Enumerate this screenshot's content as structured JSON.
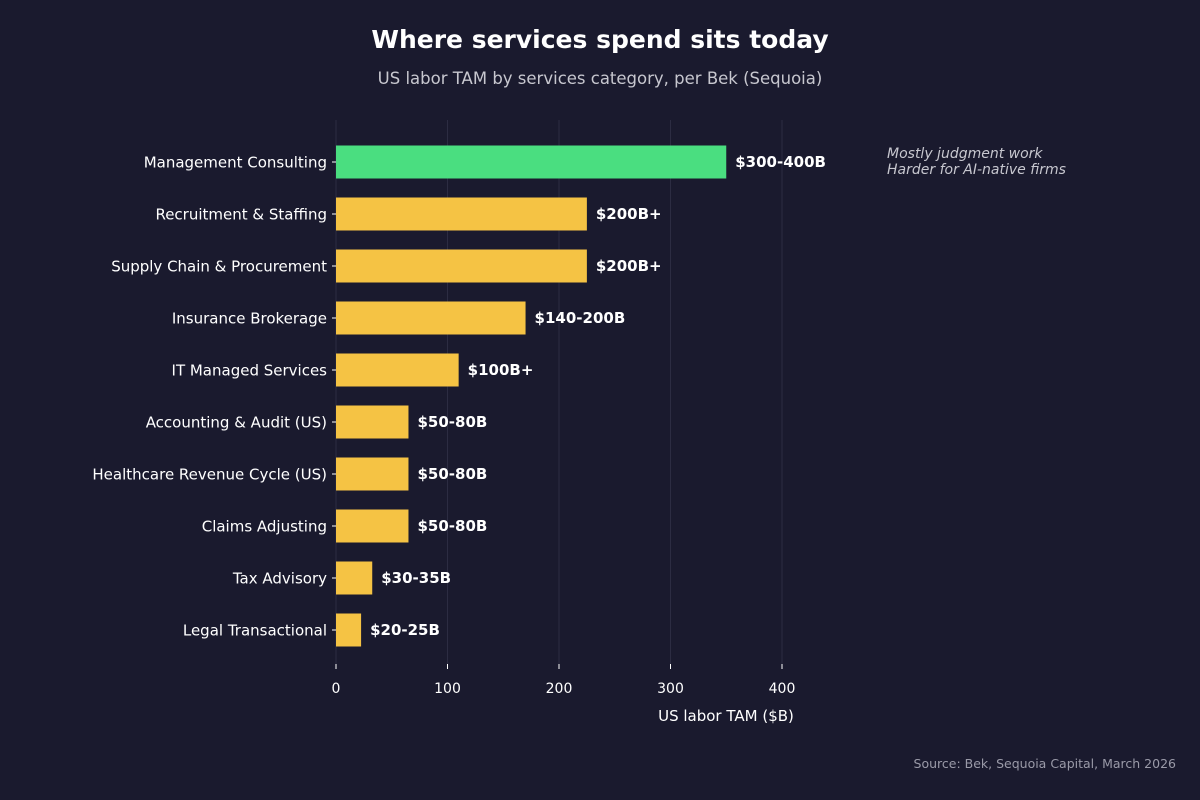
{
  "chart_data": {
    "type": "bar",
    "orientation": "horizontal",
    "title": "Where services spend sits today",
    "subtitle": "US labor TAM by services category, per Bek (Sequoia)",
    "xlabel": "US labor TAM ($B)",
    "ylabel": "",
    "xlim": [
      0,
      440
    ],
    "xticks": [
      0,
      100,
      200,
      300,
      400
    ],
    "grid": "vertical",
    "categories": [
      "Management Consulting",
      "Recruitment & Staffing",
      "Supply Chain & Procurement",
      "Insurance Brokerage",
      "IT Managed Services",
      "Accounting & Audit (US)",
      "Healthcare Revenue Cycle (US)",
      "Claims Adjusting",
      "Tax Advisory",
      "Legal Transactional"
    ],
    "values": [
      350,
      225,
      225,
      170,
      110,
      65,
      65,
      65,
      32.5,
      22.5
    ],
    "value_labels": [
      "$300-400B",
      "$200B+",
      "$200B+",
      "$140-200B",
      "$100B+",
      "$50-80B",
      "$50-80B",
      "$50-80B",
      "$30-35B",
      "$20-25B"
    ],
    "highlight_index": 0,
    "annotation": {
      "lines": [
        "Mostly judgment work",
        "Harder for AI-native firms"
      ]
    },
    "source": "Source: Bek, Sequoia Capital, March 2026"
  },
  "colors": {
    "background": "#1a1a2e",
    "highlight_bar": "#4ade80",
    "bar": "#f5c344",
    "grid": "#2c2c42",
    "axis": "#ffffff"
  }
}
